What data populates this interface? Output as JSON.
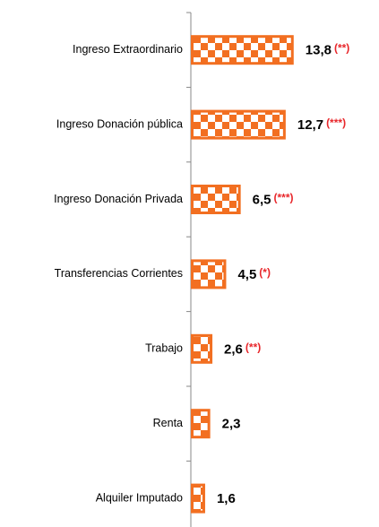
{
  "chart_data": {
    "type": "bar",
    "orientation": "horizontal",
    "categories": [
      "Ingreso Extraordinario",
      "Ingreso Donación pública",
      "Ingreso Donación Privada",
      "Transferencias Corrientes",
      "Trabajo",
      "Renta",
      "Alquiler Imputado"
    ],
    "values": [
      13.8,
      12.7,
      6.5,
      4.5,
      2.6,
      2.3,
      1.6
    ],
    "value_labels": [
      "13,8",
      "12,7",
      "6,5",
      "4,5",
      "2,6",
      "2,3",
      "1,6"
    ],
    "annotations": [
      "(**)",
      "(***)",
      "(***)",
      "(*)",
      "(**)",
      null,
      null
    ],
    "color": "#f26f21",
    "annotation_color": "#e8262a"
  }
}
